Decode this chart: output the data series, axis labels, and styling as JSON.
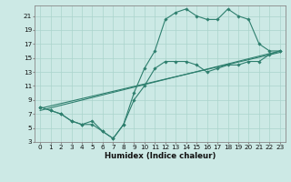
{
  "xlabel": "Humidex (Indice chaleur)",
  "bg_color": "#cce9e5",
  "grid_color": "#aad4cc",
  "line_color": "#2e7f6e",
  "xlim": [
    -0.5,
    23.5
  ],
  "ylim": [
    3,
    22.5
  ],
  "xticks": [
    0,
    1,
    2,
    3,
    4,
    5,
    6,
    7,
    8,
    9,
    10,
    11,
    12,
    13,
    14,
    15,
    16,
    17,
    18,
    19,
    20,
    21,
    22,
    23
  ],
  "yticks": [
    3,
    5,
    7,
    9,
    11,
    13,
    15,
    17,
    19,
    21
  ],
  "line1_x": [
    0,
    1,
    2,
    3,
    4,
    5,
    6,
    7,
    8,
    9,
    10,
    11,
    12,
    13,
    14,
    15,
    16,
    17,
    18,
    19,
    20,
    21,
    22,
    23
  ],
  "line1_y": [
    8,
    7.5,
    7,
    6,
    5.5,
    6,
    4.5,
    3.5,
    5.5,
    10,
    13.5,
    16,
    20.5,
    21.5,
    22,
    21,
    20.5,
    20.5,
    22,
    21,
    20.5,
    17,
    16,
    16
  ],
  "line2_x": [
    0,
    1,
    2,
    3,
    4,
    5,
    6,
    7,
    8,
    9,
    10,
    11,
    12,
    13,
    14,
    15,
    16,
    17,
    18,
    19,
    20,
    21,
    22,
    23
  ],
  "line2_y": [
    8,
    7.5,
    7,
    6,
    5.5,
    5.5,
    4.5,
    3.5,
    5.5,
    9,
    11,
    13.5,
    14.5,
    14.5,
    14.5,
    14,
    13,
    13.5,
    14,
    14,
    14.5,
    14.5,
    15.5,
    16
  ],
  "line3_x": [
    0,
    23
  ],
  "line3_y": [
    7.8,
    15.8
  ],
  "line4_x": [
    0,
    23
  ],
  "line4_y": [
    7.5,
    16.0
  ],
  "tick_fontsize": 5.2,
  "xlabel_fontsize": 6.2
}
